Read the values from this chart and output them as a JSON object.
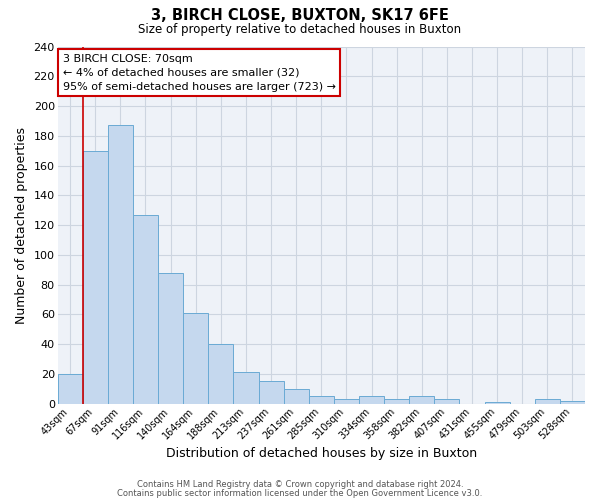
{
  "title": "3, BIRCH CLOSE, BUXTON, SK17 6FE",
  "subtitle": "Size of property relative to detached houses in Buxton",
  "xlabel": "Distribution of detached houses by size in Buxton",
  "ylabel": "Number of detached properties",
  "bin_labels": [
    "43sqm",
    "67sqm",
    "91sqm",
    "116sqm",
    "140sqm",
    "164sqm",
    "188sqm",
    "213sqm",
    "237sqm",
    "261sqm",
    "285sqm",
    "310sqm",
    "334sqm",
    "358sqm",
    "382sqm",
    "407sqm",
    "431sqm",
    "455sqm",
    "479sqm",
    "503sqm",
    "528sqm"
  ],
  "bar_heights": [
    20,
    170,
    187,
    127,
    88,
    61,
    40,
    21,
    15,
    10,
    5,
    3,
    5,
    3,
    5,
    3,
    0,
    1,
    0,
    3,
    2
  ],
  "bar_color": "#c5d8ee",
  "bar_edge_color": "#6aaad4",
  "ylim": [
    0,
    240
  ],
  "yticks": [
    0,
    20,
    40,
    60,
    80,
    100,
    120,
    140,
    160,
    180,
    200,
    220,
    240
  ],
  "property_line_color": "#cc0000",
  "annotation_box_text": "3 BIRCH CLOSE: 70sqm\n← 4% of detached houses are smaller (32)\n95% of semi-detached houses are larger (723) →",
  "annotation_box_edge_color": "#cc0000",
  "footer_line1": "Contains HM Land Registry data © Crown copyright and database right 2024.",
  "footer_line2": "Contains public sector information licensed under the Open Government Licence v3.0.",
  "background_color": "#eef2f8",
  "grid_color": "#cdd5e0"
}
